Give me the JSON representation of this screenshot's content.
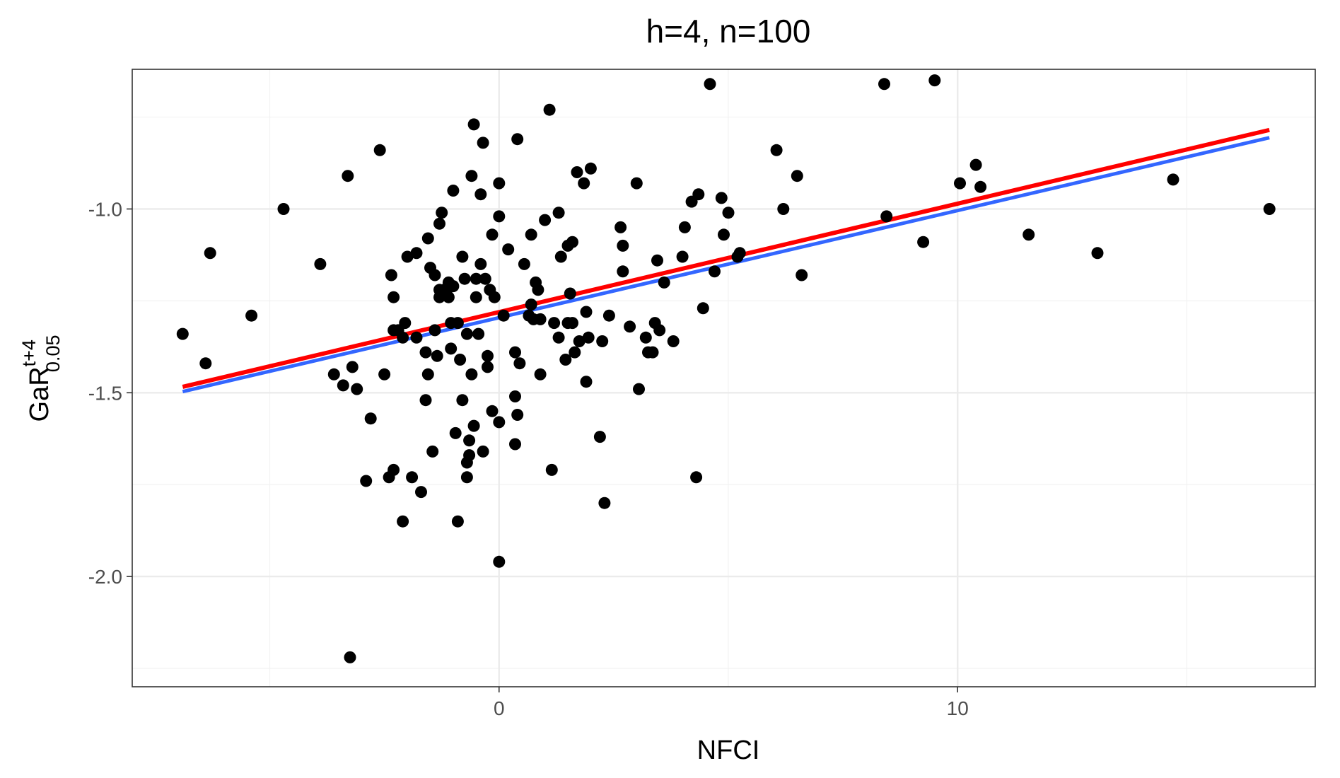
{
  "chart_data": {
    "type": "scatter",
    "title": "h=4, n=100",
    "xlabel": "NFCI",
    "ylabel": {
      "base": "GaR",
      "superscript": "t+4",
      "subscript": "0.05"
    },
    "xlim": [
      -8,
      17.8
    ],
    "ylim": [
      -2.3,
      -0.62
    ],
    "x_ticks": [
      0,
      10
    ],
    "x_tick_labels": [
      "0",
      "10"
    ],
    "y_ticks": [
      -2.0,
      -1.5,
      -1.0
    ],
    "y_tick_labels": [
      "-2.0",
      "-1.5",
      "-1.0"
    ],
    "grid": true,
    "legend": "none",
    "points": [
      [
        -6.9,
        -1.34
      ],
      [
        -6.4,
        -1.42
      ],
      [
        -6.3,
        -1.12
      ],
      [
        -5.4,
        -1.29
      ],
      [
        -4.7,
        -1.0
      ],
      [
        -3.9,
        -1.15
      ],
      [
        -3.6,
        -1.45
      ],
      [
        -3.4,
        -1.48
      ],
      [
        -3.3,
        -0.91
      ],
      [
        -3.2,
        -1.43
      ],
      [
        -3.1,
        -1.49
      ],
      [
        -2.9,
        -1.74
      ],
      [
        -2.8,
        -1.57
      ],
      [
        -2.5,
        -1.45
      ],
      [
        -2.6,
        -0.84
      ],
      [
        -2.4,
        -1.73
      ],
      [
        -2.3,
        -1.71
      ],
      [
        -2.35,
        -1.18
      ],
      [
        -2.3,
        -1.24
      ],
      [
        -2.3,
        -1.33
      ],
      [
        -2.2,
        -1.33
      ],
      [
        -2.1,
        -1.35
      ],
      [
        -2.05,
        -1.31
      ],
      [
        -2.1,
        -1.85
      ],
      [
        -2.0,
        -1.13
      ],
      [
        -1.9,
        -1.73
      ],
      [
        -1.8,
        -1.35
      ],
      [
        -1.8,
        -1.12
      ],
      [
        -1.7,
        -1.77
      ],
      [
        -1.6,
        -1.39
      ],
      [
        -1.55,
        -1.08
      ],
      [
        -1.55,
        -1.45
      ],
      [
        -1.6,
        -1.52
      ],
      [
        -1.5,
        -1.16
      ],
      [
        -1.4,
        -1.18
      ],
      [
        -1.45,
        -1.66
      ],
      [
        -1.4,
        -1.33
      ],
      [
        -1.35,
        -1.4
      ],
      [
        -1.3,
        -1.22
      ],
      [
        -1.3,
        -1.24
      ],
      [
        -1.25,
        -1.01
      ],
      [
        -1.3,
        -1.04
      ],
      [
        -1.2,
        -1.22
      ],
      [
        -1.15,
        -1.23
      ],
      [
        -1.1,
        -1.24
      ],
      [
        -1.1,
        -1.2
      ],
      [
        -1.05,
        -1.31
      ],
      [
        -1.0,
        -1.21
      ],
      [
        -1.05,
        -1.38
      ],
      [
        -1.0,
        -0.95
      ],
      [
        -0.95,
        -1.61
      ],
      [
        -0.9,
        -1.31
      ],
      [
        -0.9,
        -1.85
      ],
      [
        -0.85,
        -1.41
      ],
      [
        -0.8,
        -1.13
      ],
      [
        -0.8,
        -1.52
      ],
      [
        -0.75,
        -1.19
      ],
      [
        -0.7,
        -1.69
      ],
      [
        -0.7,
        -1.73
      ],
      [
        -0.65,
        -1.67
      ],
      [
        -0.7,
        -1.34
      ],
      [
        -0.65,
        -1.63
      ],
      [
        -0.6,
        -0.91
      ],
      [
        -0.6,
        -1.45
      ],
      [
        -0.55,
        -1.59
      ],
      [
        -0.55,
        -0.77
      ],
      [
        -0.5,
        -1.19
      ],
      [
        -0.5,
        -1.24
      ],
      [
        -0.45,
        -1.34
      ],
      [
        -0.4,
        -0.96
      ],
      [
        -0.4,
        -1.15
      ],
      [
        -0.35,
        -1.66
      ],
      [
        -0.3,
        -1.19
      ],
      [
        -0.25,
        -1.4
      ],
      [
        -0.25,
        -1.43
      ],
      [
        -0.35,
        -0.82
      ],
      [
        -0.2,
        -1.22
      ],
      [
        -0.15,
        -1.07
      ],
      [
        -0.1,
        -1.24
      ],
      [
        -0.15,
        -1.55
      ],
      [
        0.0,
        -1.02
      ],
      [
        0.0,
        -0.93
      ],
      [
        0.0,
        -1.58
      ],
      [
        0.0,
        -1.96
      ],
      [
        0.1,
        -1.29
      ],
      [
        0.2,
        -1.11
      ],
      [
        0.35,
        -1.51
      ],
      [
        0.35,
        -1.39
      ],
      [
        0.35,
        -1.64
      ],
      [
        0.4,
        -1.56
      ],
      [
        0.4,
        -0.81
      ],
      [
        0.45,
        -1.42
      ],
      [
        0.55,
        -1.15
      ],
      [
        0.65,
        -1.29
      ],
      [
        0.7,
        -1.26
      ],
      [
        0.7,
        -1.07
      ],
      [
        0.75,
        -1.3
      ],
      [
        0.8,
        -1.2
      ],
      [
        0.85,
        -1.22
      ],
      [
        0.9,
        -1.3
      ],
      [
        0.9,
        -1.45
      ],
      [
        1.0,
        -1.03
      ],
      [
        1.1,
        -0.73
      ],
      [
        1.15,
        -1.71
      ],
      [
        1.2,
        -1.31
      ],
      [
        1.3,
        -1.01
      ],
      [
        1.3,
        -1.35
      ],
      [
        1.35,
        -1.13
      ],
      [
        1.45,
        -1.41
      ],
      [
        1.5,
        -1.1
      ],
      [
        1.5,
        -1.31
      ],
      [
        1.55,
        -1.23
      ],
      [
        1.6,
        -1.31
      ],
      [
        1.6,
        -1.09
      ],
      [
        1.65,
        -1.39
      ],
      [
        1.7,
        -0.9
      ],
      [
        1.75,
        -1.36
      ],
      [
        1.85,
        -0.93
      ],
      [
        1.9,
        -1.47
      ],
      [
        1.9,
        -1.28
      ],
      [
        1.95,
        -1.35
      ],
      [
        2.0,
        -0.89
      ],
      [
        2.2,
        -1.62
      ],
      [
        2.25,
        -1.36
      ],
      [
        2.3,
        -1.8
      ],
      [
        2.4,
        -1.29
      ],
      [
        2.65,
        -1.05
      ],
      [
        2.7,
        -1.1
      ],
      [
        2.7,
        -1.17
      ],
      [
        2.85,
        -1.32
      ],
      [
        3.0,
        -0.93
      ],
      [
        3.05,
        -1.49
      ],
      [
        3.2,
        -1.35
      ],
      [
        3.25,
        -1.39
      ],
      [
        3.35,
        -1.39
      ],
      [
        3.4,
        -1.31
      ],
      [
        3.45,
        -1.14
      ],
      [
        3.5,
        -1.33
      ],
      [
        3.6,
        -1.2
      ],
      [
        3.8,
        -1.36
      ],
      [
        4.0,
        -1.13
      ],
      [
        4.05,
        -1.05
      ],
      [
        4.2,
        -0.98
      ],
      [
        4.3,
        -1.73
      ],
      [
        4.35,
        -0.96
      ],
      [
        4.45,
        -1.27
      ],
      [
        4.6,
        -0.66
      ],
      [
        4.7,
        -1.17
      ],
      [
        4.85,
        -0.97
      ],
      [
        4.9,
        -1.07
      ],
      [
        5.0,
        -1.01
      ],
      [
        5.2,
        -1.13
      ],
      [
        5.25,
        -1.12
      ],
      [
        6.05,
        -0.84
      ],
      [
        6.2,
        -1.0
      ],
      [
        6.5,
        -0.91
      ],
      [
        6.6,
        -1.18
      ],
      [
        8.4,
        -0.66
      ],
      [
        8.45,
        -1.02
      ],
      [
        9.25,
        -1.09
      ],
      [
        9.5,
        -0.65
      ],
      [
        10.05,
        -0.93
      ],
      [
        10.4,
        -0.88
      ],
      [
        10.5,
        -0.94
      ],
      [
        11.55,
        -1.07
      ],
      [
        13.05,
        -1.12
      ],
      [
        14.7,
        -0.92
      ],
      [
        16.8,
        -1.0
      ],
      [
        -3.25,
        -2.22
      ]
    ],
    "series": [
      {
        "name": "",
        "color": "#3366ff",
        "x": [
          -6.9,
          16.8
        ],
        "y": [
          -1.497,
          -0.806
        ]
      },
      {
        "name": "",
        "color": "#ff0000",
        "x": [
          -6.9,
          16.8
        ],
        "y": [
          -1.484,
          -0.785
        ]
      }
    ]
  }
}
